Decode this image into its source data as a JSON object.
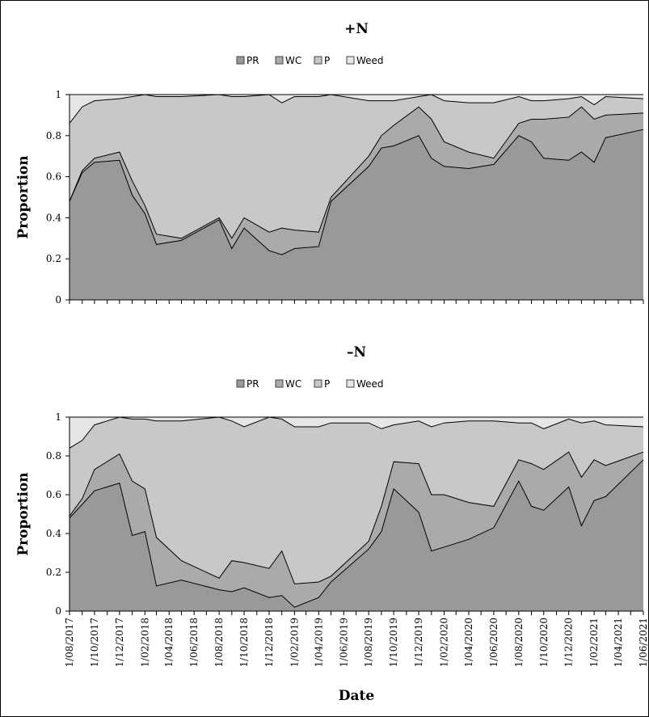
{
  "chart_data": [
    {
      "type": "area",
      "title": "+N",
      "ylabel": "Proportion",
      "xlabel": "",
      "ylim": [
        0,
        1
      ],
      "yticks": [
        "0",
        "0.2",
        "0.4",
        "0.6",
        "0.8",
        "1"
      ],
      "legend": [
        "PR",
        "WC",
        "P",
        "Weed"
      ],
      "legend_position": "top",
      "stacked": true,
      "colors": {
        "PR": "#999999",
        "WC": "#aaaaaa",
        "P": "#c8c8c8",
        "Weed": "#e6e6e6"
      },
      "x": [
        "2017-08-01",
        "2017-09-01",
        "2017-10-01",
        "2017-12-01",
        "2018-01-01",
        "2018-02-01",
        "2018-03-01",
        "2018-05-01",
        "2018-08-01",
        "2018-09-01",
        "2018-10-01",
        "2018-12-01",
        "2019-01-01",
        "2019-02-01",
        "2019-04-01",
        "2019-05-01",
        "2019-08-01",
        "2019-09-01",
        "2019-10-01",
        "2019-12-01",
        "2020-01-01",
        "2020-02-01",
        "2020-04-01",
        "2020-06-01",
        "2020-08-01",
        "2020-09-01",
        "2020-10-01",
        "2020-12-01",
        "2021-01-01",
        "2021-02-01",
        "2021-03-01",
        "2021-06-01"
      ],
      "cumulative_boundaries": [
        {
          "name": "PR",
          "values": [
            0.48,
            0.62,
            0.67,
            0.68,
            0.51,
            0.42,
            0.27,
            0.29,
            0.39,
            0.25,
            0.35,
            0.24,
            0.22,
            0.25,
            0.26,
            0.48,
            0.65,
            0.74,
            0.75,
            0.8,
            0.69,
            0.65,
            0.64,
            0.66,
            0.8,
            0.77,
            0.69,
            0.68,
            0.72,
            0.67,
            0.79,
            0.83
          ]
        },
        {
          "name": "PR+WC",
          "values": [
            0.48,
            0.63,
            0.69,
            0.72,
            0.58,
            0.46,
            0.32,
            0.3,
            0.4,
            0.3,
            0.4,
            0.33,
            0.35,
            0.34,
            0.33,
            0.5,
            0.7,
            0.8,
            0.85,
            0.94,
            0.88,
            0.77,
            0.72,
            0.69,
            0.86,
            0.88,
            0.88,
            0.89,
            0.94,
            0.88,
            0.9,
            0.91
          ]
        },
        {
          "name": "PR+WC+P",
          "values": [
            0.86,
            0.94,
            0.97,
            0.98,
            0.99,
            1.0,
            0.99,
            0.99,
            1.0,
            0.99,
            0.99,
            1.0,
            0.96,
            0.99,
            0.99,
            1.0,
            0.97,
            0.97,
            0.97,
            0.99,
            1.0,
            0.97,
            0.96,
            0.96,
            0.99,
            0.97,
            0.97,
            0.98,
            0.99,
            0.95,
            0.99,
            0.98
          ]
        }
      ]
    },
    {
      "type": "area",
      "title": "–N",
      "ylabel": "Proportion",
      "xlabel": "Date",
      "ylim": [
        0,
        1
      ],
      "yticks": [
        "0",
        "0.2",
        "0.4",
        "0.6",
        "0.8",
        "1"
      ],
      "legend": [
        "PR",
        "WC",
        "P",
        "Weed"
      ],
      "legend_position": "top",
      "stacked": true,
      "colors": {
        "PR": "#999999",
        "WC": "#aaaaaa",
        "P": "#c8c8c8",
        "Weed": "#e6e6e6"
      },
      "x": [
        "2017-08-01",
        "2017-09-01",
        "2017-10-01",
        "2017-12-01",
        "2018-01-01",
        "2018-02-01",
        "2018-03-01",
        "2018-05-01",
        "2018-08-01",
        "2018-09-01",
        "2018-10-01",
        "2018-12-01",
        "2019-01-01",
        "2019-02-01",
        "2019-04-01",
        "2019-05-01",
        "2019-08-01",
        "2019-09-01",
        "2019-10-01",
        "2019-12-01",
        "2020-01-01",
        "2020-02-01",
        "2020-04-01",
        "2020-06-01",
        "2020-08-01",
        "2020-09-01",
        "2020-10-01",
        "2020-12-01",
        "2021-01-01",
        "2021-02-01",
        "2021-03-01",
        "2021-06-01"
      ],
      "cumulative_boundaries": [
        {
          "name": "PR",
          "values": [
            0.48,
            0.55,
            0.62,
            0.66,
            0.39,
            0.41,
            0.13,
            0.16,
            0.11,
            0.1,
            0.12,
            0.07,
            0.08,
            0.02,
            0.07,
            0.15,
            0.32,
            0.41,
            0.63,
            0.51,
            0.31,
            0.33,
            0.37,
            0.43,
            0.67,
            0.54,
            0.52,
            0.64,
            0.44,
            0.57,
            0.59,
            0.78
          ]
        },
        {
          "name": "PR+WC",
          "values": [
            0.49,
            0.58,
            0.73,
            0.81,
            0.67,
            0.63,
            0.38,
            0.26,
            0.17,
            0.26,
            0.25,
            0.22,
            0.31,
            0.14,
            0.15,
            0.18,
            0.36,
            0.54,
            0.77,
            0.76,
            0.6,
            0.6,
            0.56,
            0.54,
            0.78,
            0.76,
            0.73,
            0.82,
            0.69,
            0.78,
            0.75,
            0.82
          ]
        },
        {
          "name": "PR+WC+P",
          "values": [
            0.84,
            0.88,
            0.96,
            1.0,
            0.99,
            0.99,
            0.98,
            0.98,
            1.0,
            0.98,
            0.95,
            1.0,
            0.99,
            0.95,
            0.95,
            0.97,
            0.97,
            0.94,
            0.96,
            0.98,
            0.95,
            0.97,
            0.98,
            0.98,
            0.97,
            0.97,
            0.94,
            0.99,
            0.97,
            0.98,
            0.96,
            0.95
          ]
        }
      ],
      "x_tick_labels": [
        "1/08/2017",
        "1/10/2017",
        "1/12/2017",
        "1/02/2018",
        "1/04/2018",
        "1/06/2018",
        "1/08/2018",
        "1/10/2018",
        "1/12/2018",
        "1/02/2019",
        "1/04/2019",
        "1/06/2019",
        "1/08/2019",
        "1/10/2019",
        "1/12/2019",
        "1/02/2020",
        "1/04/2020",
        "1/06/2020",
        "1/08/2020",
        "1/10/2020",
        "1/12/2020",
        "1/02/2021",
        "1/04/2021",
        "1/06/2021"
      ]
    }
  ]
}
